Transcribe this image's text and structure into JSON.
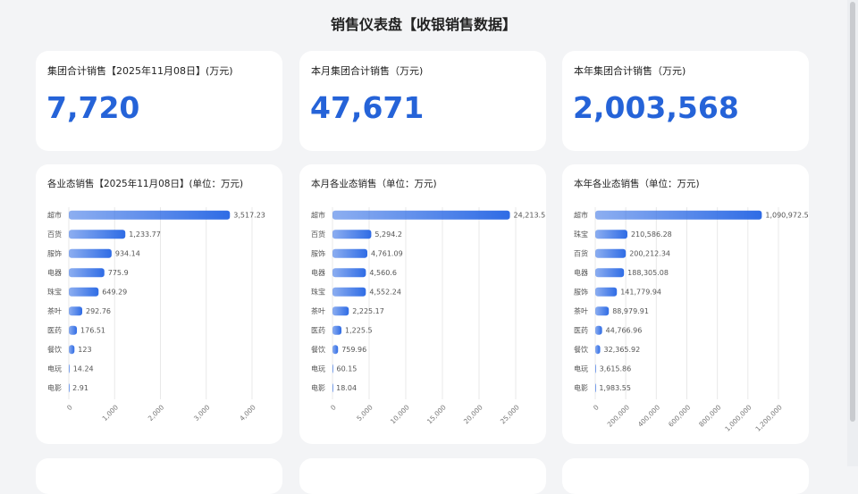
{
  "header": {
    "title": "销售仪表盘【收银销售数据】"
  },
  "kpis": [
    {
      "label": "集团合计销售【2025年11月08日】(万元)",
      "value": "7,720"
    },
    {
      "label": "本月集团合计销售（万元)",
      "value": "47,671"
    },
    {
      "label": "本年集团合计销售（万元)",
      "value": "2,003,568"
    }
  ],
  "chart_data": [
    {
      "type": "bar",
      "orientation": "horizontal",
      "title": "各业态销售【2025年11月08日】(单位：万元)",
      "color": "#2f6ce5",
      "grid": true,
      "categories": [
        "超市",
        "百货",
        "服饰",
        "电器",
        "珠宝",
        "茶叶",
        "医药",
        "餐饮",
        "电玩",
        "电影"
      ],
      "values": [
        3517.23,
        1233.77,
        934.14,
        775.9,
        649.29,
        292.76,
        176.51,
        123,
        14.24,
        2.91
      ],
      "value_labels": [
        "3,517.23",
        "1,233.77",
        "934.14",
        "775.9",
        "649.29",
        "292.76",
        "176.51",
        "123",
        "14.24",
        "2.91"
      ],
      "xlim": [
        0,
        4000
      ],
      "xticks": [
        0,
        {
          "value": 1000,
          "label": "1,000"
        },
        {
          "value": 2000,
          "label": "2,000"
        },
        {
          "value": 3000,
          "label": "3,000"
        },
        {
          "value": 4000,
          "label": "4,000"
        }
      ]
    },
    {
      "type": "bar",
      "orientation": "horizontal",
      "title": "本月各业态销售（单位：万元)",
      "color": "#2f6ce5",
      "grid": true,
      "categories": [
        "超市",
        "百货",
        "服饰",
        "电器",
        "珠宝",
        "茶叶",
        "医药",
        "餐饮",
        "电玩",
        "电影"
      ],
      "values": [
        24213.5,
        5294.2,
        4761.09,
        4560.6,
        4552.24,
        2225.17,
        1225.5,
        759.96,
        60.15,
        18.04
      ],
      "value_labels": [
        "24,213.5",
        "5,294.2",
        "4,761.09",
        "4,560.6",
        "4,552.24",
        "2,225.17",
        "1,225.5",
        "759.96",
        "60.15",
        "18.04"
      ],
      "xlim": [
        0,
        25000
      ],
      "xticks": [
        0,
        {
          "value": 5000,
          "label": "5,000"
        },
        {
          "value": 10000,
          "label": "10,000"
        },
        {
          "value": 15000,
          "label": "15,000"
        },
        {
          "value": 20000,
          "label": "20,000"
        },
        {
          "value": 25000,
          "label": "25,000"
        }
      ]
    },
    {
      "type": "bar",
      "orientation": "horizontal",
      "title": "本年各业态销售（单位：万元)",
      "color": "#2f6ce5",
      "grid": true,
      "categories": [
        "超市",
        "珠宝",
        "百货",
        "电器",
        "服饰",
        "茶叶",
        "医药",
        "餐饮",
        "电玩",
        "电影"
      ],
      "values": [
        1090972.5,
        210586.28,
        200212.34,
        188305.08,
        141779.94,
        88979.91,
        44766.96,
        32365.92,
        3615.86,
        1983.55
      ],
      "value_labels": [
        "1,090,972.5",
        "210,586.28",
        "200,212.34",
        "188,305.08",
        "141,779.94",
        "88,979.91",
        "44,766.96",
        "32,365.92",
        "3,615.86",
        "1,983.55"
      ],
      "xlim": [
        0,
        1200000
      ],
      "xticks": [
        0,
        {
          "value": 200000,
          "label": "200,000"
        },
        {
          "value": 400000,
          "label": "400,000"
        },
        {
          "value": 600000,
          "label": "600,000"
        },
        {
          "value": 800000,
          "label": "800,000"
        },
        {
          "value": 1000000,
          "label": "1,000,000"
        },
        {
          "value": 1200000,
          "label": "1,200,000"
        }
      ]
    }
  ]
}
